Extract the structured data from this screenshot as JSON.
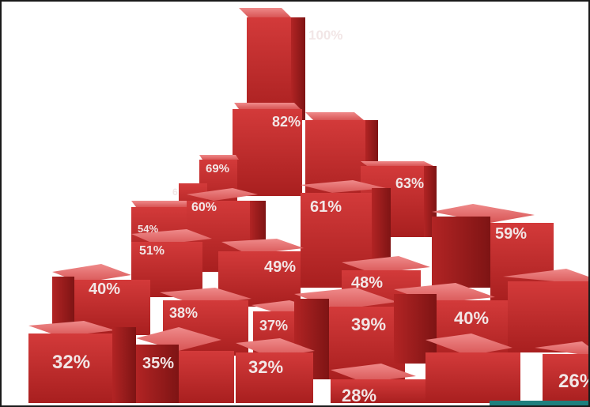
{
  "image": {
    "subject": "3d-red-cube-bar-stack",
    "labels": {
      "l100": "100%",
      "l82": "82%",
      "l69": "69%",
      "l6": "6",
      "l63": "63%",
      "l60": "60%",
      "l61": "61%",
      "l59": "59%",
      "l54": "54%",
      "l51": "51%",
      "l49": "49%",
      "l48": "48%",
      "l40a": "40%",
      "l38": "38%",
      "l37": "37%",
      "l39": "39%",
      "l40b": "40%",
      "l32a": "32%",
      "l35": "35%",
      "l32b": "32%",
      "l28": "28%",
      "l26": "26%"
    }
  },
  "colors": {
    "front": "#c92c2c",
    "top": "#e56a6a",
    "side": "#9e1b1b",
    "label": "#f2e6e6",
    "frame_border": "#1a1a1a",
    "accent": "#1e7f7d"
  }
}
